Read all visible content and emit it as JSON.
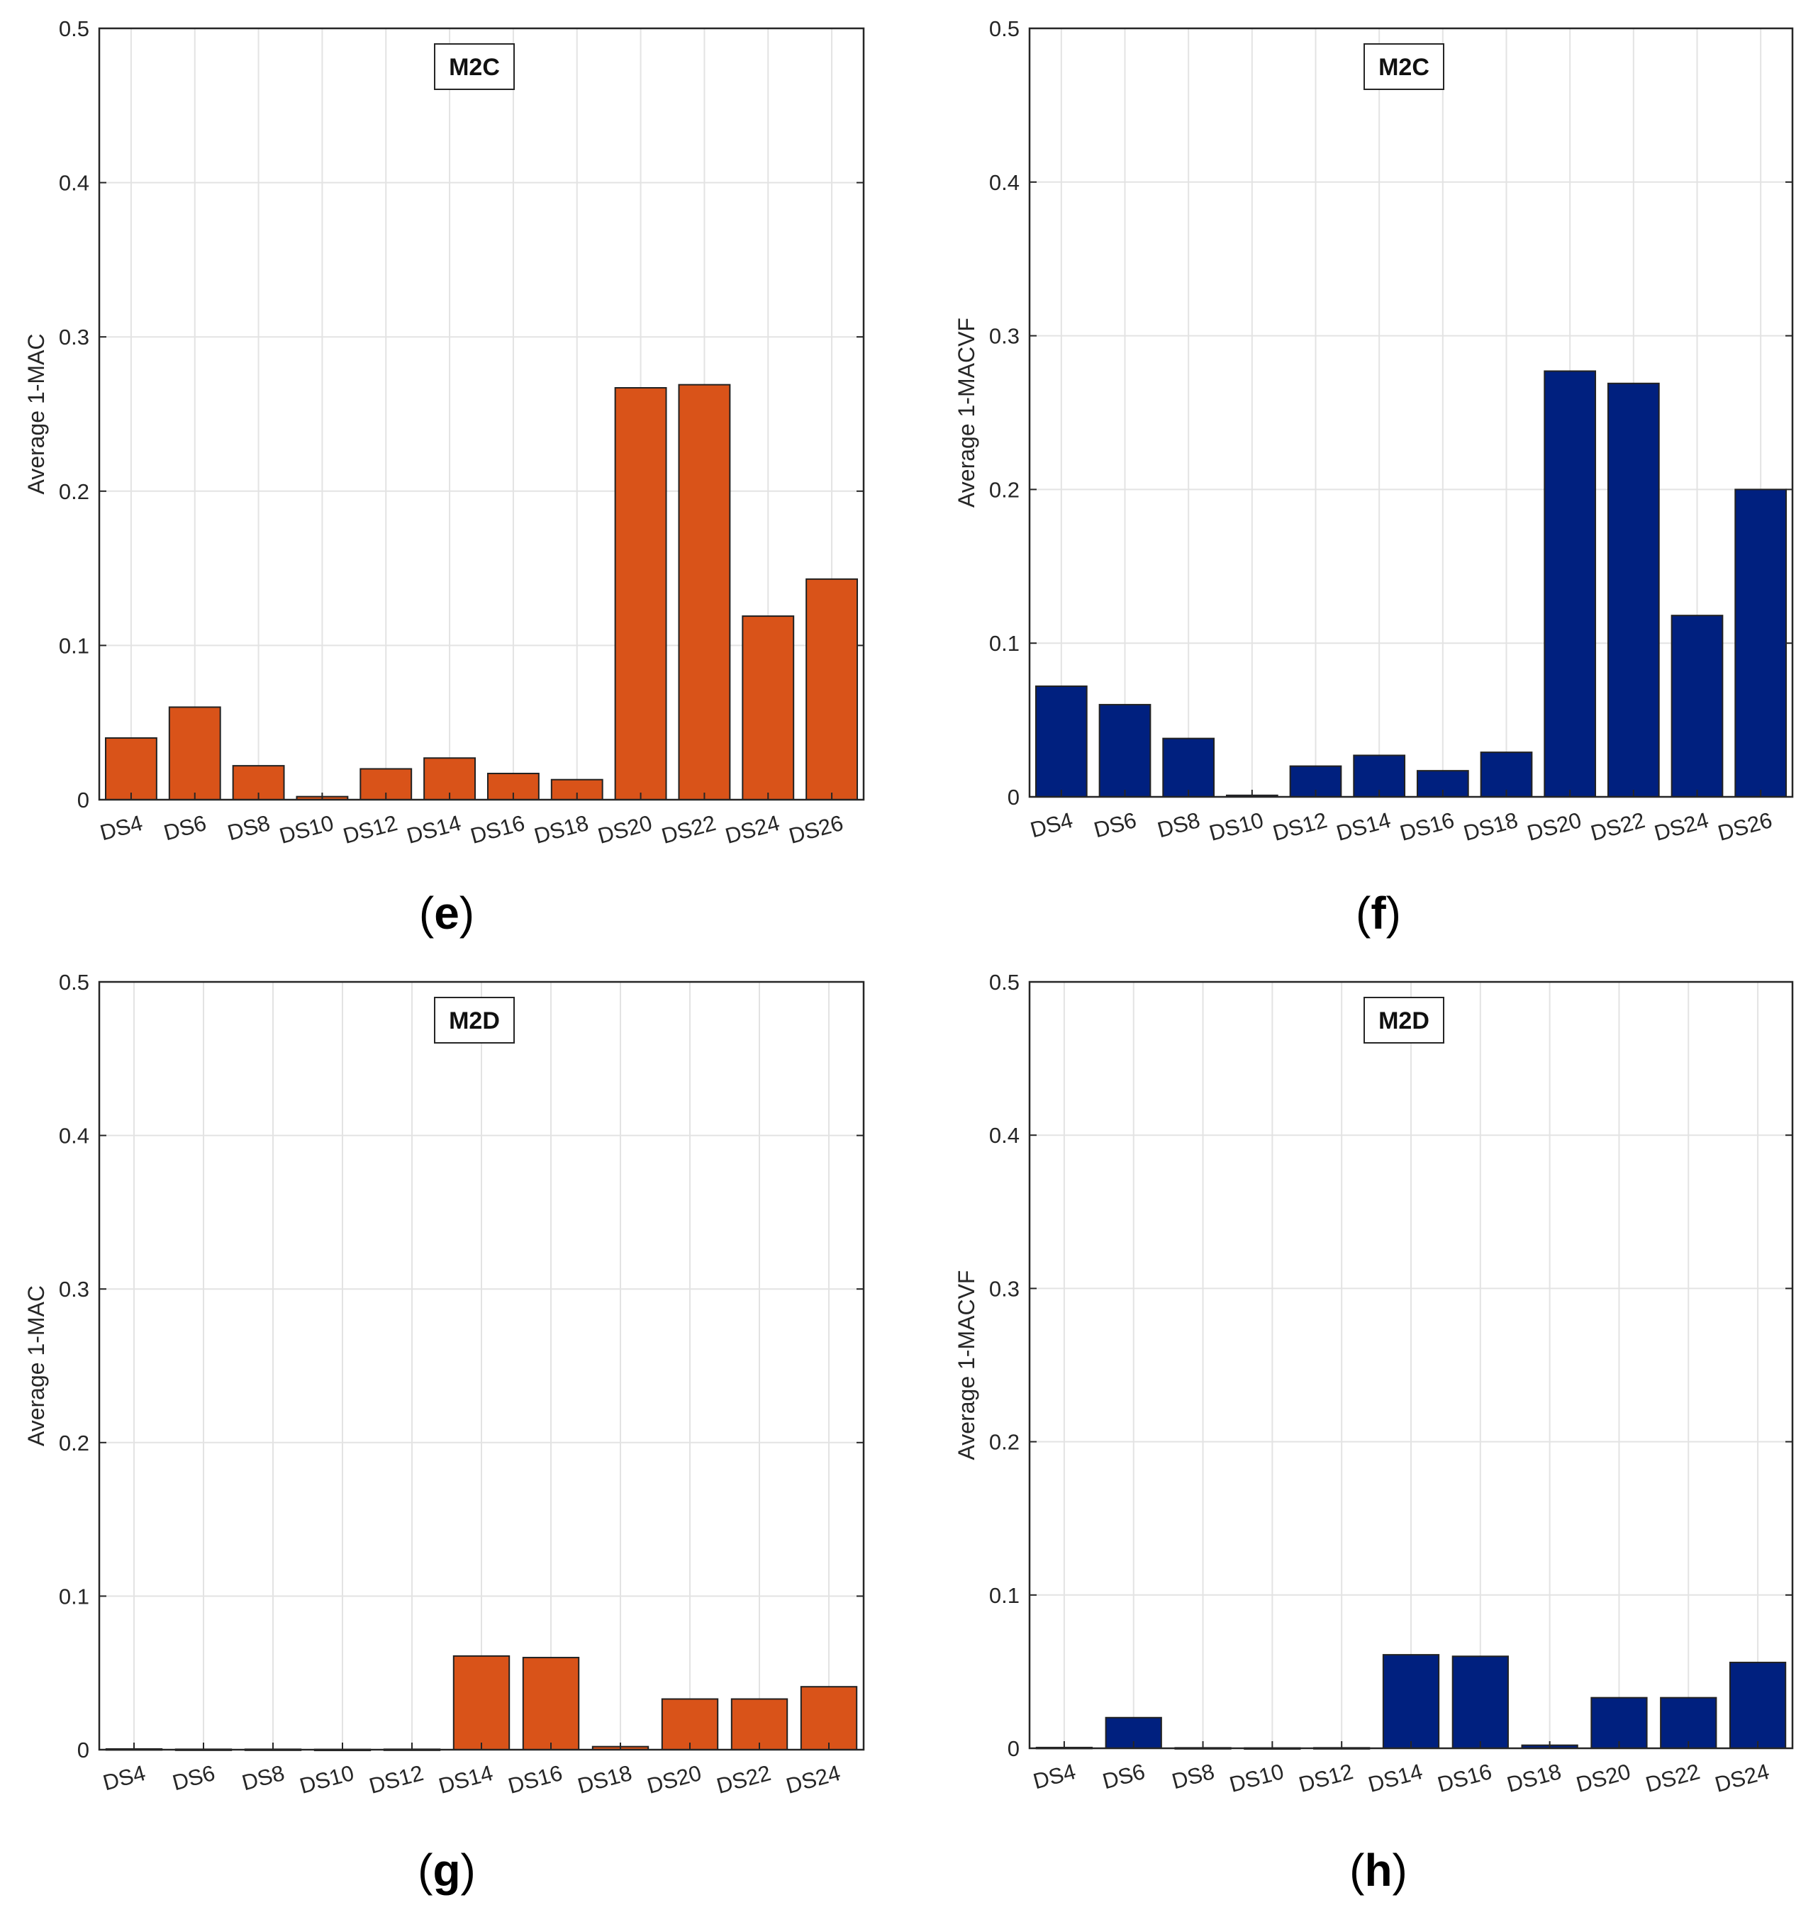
{
  "figure": {
    "panels": [
      {
        "caption_open": "(",
        "caption_letter": "e",
        "caption_close": ")"
      },
      {
        "caption_open": "(",
        "caption_letter": "f",
        "caption_close": ")"
      },
      {
        "caption_open": "(",
        "caption_letter": "g",
        "caption_close": ")"
      },
      {
        "caption_open": "(",
        "caption_letter": "h",
        "caption_close": ")"
      }
    ]
  },
  "chart_data": [
    {
      "type": "bar",
      "panel": "e",
      "title": "M2C",
      "xlabel": "",
      "ylabel": "Average 1-MAC",
      "categories": [
        "DS4",
        "DS6",
        "DS8",
        "DS10",
        "DS12",
        "DS14",
        "DS16",
        "DS18",
        "DS20",
        "DS22",
        "DS24",
        "DS26"
      ],
      "values": [
        0.04,
        0.06,
        0.022,
        0.002,
        0.02,
        0.027,
        0.017,
        0.013,
        0.267,
        0.269,
        0.119,
        0.143
      ],
      "ylim": [
        0,
        0.5
      ],
      "yticks": [
        0,
        0.1,
        0.2,
        0.3,
        0.4,
        0.5
      ],
      "ytick_labels": [
        "0",
        "0.1",
        "0.2",
        "0.3",
        "0.4",
        "0.5"
      ],
      "grid": true,
      "color": "#d95319"
    },
    {
      "type": "bar",
      "panel": "f",
      "title": "M2C",
      "xlabel": "",
      "ylabel": "Average 1-MACVF",
      "categories": [
        "DS4",
        "DS6",
        "DS8",
        "DS10",
        "DS12",
        "DS14",
        "DS16",
        "DS18",
        "DS20",
        "DS22",
        "DS24",
        "DS26"
      ],
      "values": [
        0.072,
        0.06,
        0.038,
        0.001,
        0.02,
        0.027,
        0.017,
        0.029,
        0.277,
        0.269,
        0.118,
        0.2
      ],
      "ylim": [
        0,
        0.5
      ],
      "yticks": [
        0,
        0.1,
        0.2,
        0.3,
        0.4,
        0.5
      ],
      "ytick_labels": [
        "0",
        "0.1",
        "0.2",
        "0.3",
        "0.4",
        "0.5"
      ],
      "grid": true,
      "color": "#00207f"
    },
    {
      "type": "bar",
      "panel": "g",
      "title": "M2D",
      "xlabel": "",
      "ylabel": "Average 1-MAC",
      "categories": [
        "DS4",
        "DS6",
        "DS8",
        "DS10",
        "DS12",
        "DS14",
        "DS16",
        "DS18",
        "DS20",
        "DS22",
        "DS24"
      ],
      "values": [
        0.0005,
        0.0003,
        0.0003,
        0.0002,
        0.0003,
        0.061,
        0.06,
        0.002,
        0.033,
        0.033,
        0.041
      ],
      "ylim": [
        0,
        0.5
      ],
      "yticks": [
        0,
        0.1,
        0.2,
        0.3,
        0.4,
        0.5
      ],
      "ytick_labels": [
        "0",
        "0.1",
        "0.2",
        "0.3",
        "0.4",
        "0.5"
      ],
      "grid": true,
      "color": "#d95319"
    },
    {
      "type": "bar",
      "panel": "h",
      "title": "M2D",
      "xlabel": "",
      "ylabel": "Average 1-MACVF",
      "categories": [
        "DS4",
        "DS6",
        "DS8",
        "DS10",
        "DS12",
        "DS14",
        "DS16",
        "DS18",
        "DS20",
        "DS22",
        "DS24"
      ],
      "values": [
        0.0005,
        0.02,
        0.0003,
        0.0002,
        0.0003,
        0.061,
        0.06,
        0.002,
        0.033,
        0.033,
        0.056
      ],
      "ylim": [
        0,
        0.5
      ],
      "yticks": [
        0,
        0.1,
        0.2,
        0.3,
        0.4,
        0.5
      ],
      "ytick_labels": [
        "0",
        "0.1",
        "0.2",
        "0.3",
        "0.4",
        "0.5"
      ],
      "grid": true,
      "color": "#00207f"
    }
  ]
}
